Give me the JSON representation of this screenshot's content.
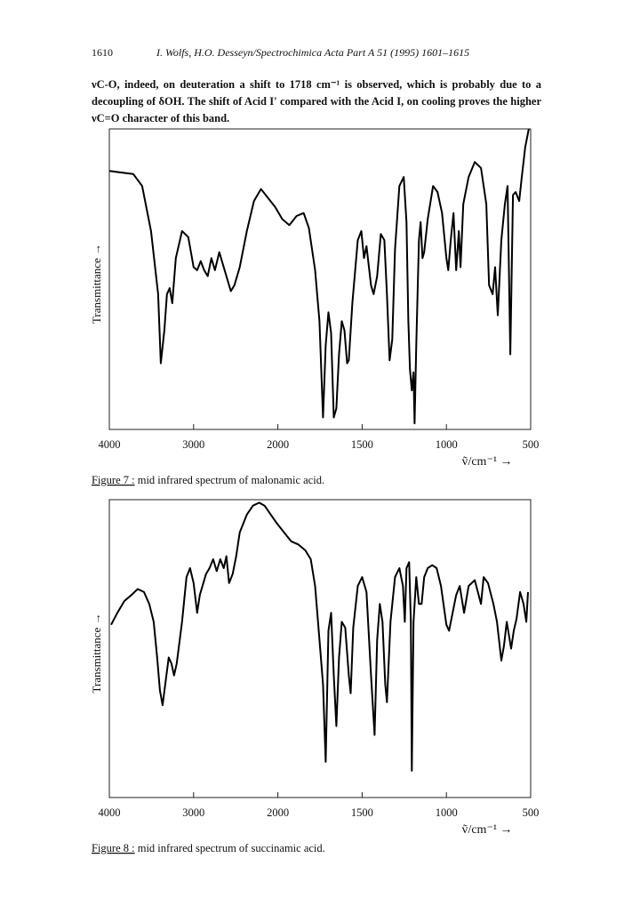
{
  "header": {
    "page": "1610",
    "running_title": "I. Wolfs, H.O. Desseyn/Spectrochimica Acta Part A 51 (1995) 1601–1615"
  },
  "paragraph": "νC-O, indeed, on deuteration a shift to 1718 cm⁻¹ is observed, which is probably due to a decoupling of δOH. The shift of Acid I' compared with the Acid I, on cooling proves the higher νC=O character of this band.",
  "chart_data": [
    {
      "type": "line",
      "x_label": "ṽ/cm⁻¹ →",
      "y_label": "Transmittance →",
      "caption_label": "Figure 7 :",
      "caption": " mid infrared spectrum of malonamic acid.",
      "xlim": [
        4000,
        500
      ],
      "xticks": [
        4000,
        3000,
        2000,
        1500,
        1000,
        500
      ],
      "ylim": [
        0,
        100
      ],
      "x": [
        4000,
        3716,
        3611,
        3505,
        3421,
        3389,
        3347,
        3316,
        3284,
        3253,
        3211,
        3137,
        3063,
        3000,
        2958,
        2916,
        2874,
        2832,
        2789,
        2747,
        2695,
        2642,
        2600,
        2558,
        2516,
        2453,
        2368,
        2284,
        2200,
        2116,
        2032,
        1974,
        1932,
        1889,
        1847,
        1816,
        1779,
        1753,
        1732,
        1716,
        1700,
        1684,
        1668,
        1653,
        1637,
        1621,
        1605,
        1589,
        1579,
        1558,
        1526,
        1505,
        1489,
        1474,
        1447,
        1432,
        1411,
        1389,
        1368,
        1353,
        1337,
        1321,
        1305,
        1279,
        1253,
        1237,
        1226,
        1216,
        1205,
        1195,
        1189,
        1179,
        1163,
        1153,
        1142,
        1132,
        1111,
        1079,
        1053,
        1026,
        1000,
        989,
        974,
        958,
        942,
        926,
        916,
        900,
        868,
        832,
        795,
        763,
        747,
        726,
        711,
        695,
        674,
        653,
        637,
        621,
        605,
        589,
        568,
        553,
        532,
        511
      ],
      "series": [
        {
          "color": "#000000",
          "values": [
            86,
            85,
            81,
            66,
            45,
            22,
            33,
            45,
            47,
            42,
            57,
            66,
            64,
            54,
            53,
            56,
            53,
            51,
            57,
            53,
            59,
            54,
            50,
            46,
            48,
            54,
            66,
            76,
            80,
            77,
            74,
            70,
            68,
            71,
            72,
            67,
            53,
            36,
            4,
            28,
            39,
            32,
            4,
            7,
            25,
            36,
            33,
            22,
            23,
            42,
            63,
            66,
            57,
            61,
            48,
            45,
            51,
            65,
            63,
            45,
            23,
            30,
            60,
            81,
            84,
            69,
            36,
            20,
            13,
            19,
            2,
            28,
            63,
            69,
            57,
            59,
            70,
            81,
            79,
            72,
            57,
            53,
            63,
            72,
            53,
            66,
            54,
            75,
            84,
            89,
            87,
            75,
            48,
            45,
            54,
            38,
            63,
            75,
            81,
            25,
            78,
            79,
            76,
            84,
            94,
            100
          ]
        }
      ]
    },
    {
      "type": "line",
      "x_label": "ṽ/cm⁻¹ →",
      "y_label": "Transmittance →",
      "caption_label": "Figure 8 :",
      "caption": " mid infrared spectrum of succinamic acid.",
      "xlim": [
        4000,
        500
      ],
      "xticks": [
        4000,
        3000,
        2000,
        1500,
        1000,
        500
      ],
      "ylim": [
        0,
        100
      ],
      "x": [
        3979,
        3905,
        3821,
        3737,
        3663,
        3589,
        3526,
        3474,
        3432,
        3400,
        3368,
        3337,
        3295,
        3263,
        3232,
        3200,
        3137,
        3084,
        3042,
        3000,
        2958,
        2926,
        2895,
        2853,
        2811,
        2768,
        2726,
        2684,
        2642,
        2611,
        2579,
        2537,
        2495,
        2453,
        2368,
        2295,
        2221,
        2158,
        2084,
        2011,
        1963,
        1921,
        1879,
        1837,
        1805,
        1779,
        1753,
        1732,
        1716,
        1700,
        1684,
        1668,
        1653,
        1637,
        1621,
        1600,
        1579,
        1568,
        1553,
        1526,
        1500,
        1474,
        1447,
        1426,
        1411,
        1395,
        1379,
        1363,
        1353,
        1332,
        1305,
        1279,
        1258,
        1247,
        1237,
        1221,
        1211,
        1205,
        1195,
        1179,
        1163,
        1147,
        1132,
        1111,
        1084,
        1058,
        1032,
        1000,
        984,
        963,
        942,
        921,
        895,
        868,
        832,
        795,
        779,
        753,
        721,
        700,
        674,
        658,
        642,
        616,
        600,
        584,
        563,
        542,
        526,
        516
      ],
      "series": [
        {
          "color": "#000000",
          "values": [
            58,
            62,
            66,
            68,
            70,
            69,
            65,
            59,
            47,
            36,
            31,
            38,
            47,
            45,
            41,
            45,
            59,
            74,
            77,
            72,
            62,
            68,
            71,
            75,
            77,
            80,
            76,
            80,
            77,
            81,
            72,
            75,
            81,
            89,
            95,
            98,
            99,
            98,
            95,
            92,
            89,
            86,
            85,
            83,
            80,
            71,
            53,
            38,
            12,
            56,
            62,
            41,
            24,
            47,
            59,
            57,
            41,
            35,
            57,
            71,
            74,
            69,
            41,
            21,
            53,
            65,
            59,
            38,
            32,
            59,
            74,
            77,
            71,
            59,
            77,
            79,
            59,
            9,
            59,
            74,
            65,
            65,
            74,
            77,
            78,
            77,
            71,
            58,
            56,
            62,
            68,
            71,
            62,
            71,
            73,
            65,
            74,
            72,
            65,
            59,
            46,
            51,
            59,
            50,
            56,
            60,
            69,
            65,
            59,
            69
          ]
        }
      ]
    }
  ]
}
